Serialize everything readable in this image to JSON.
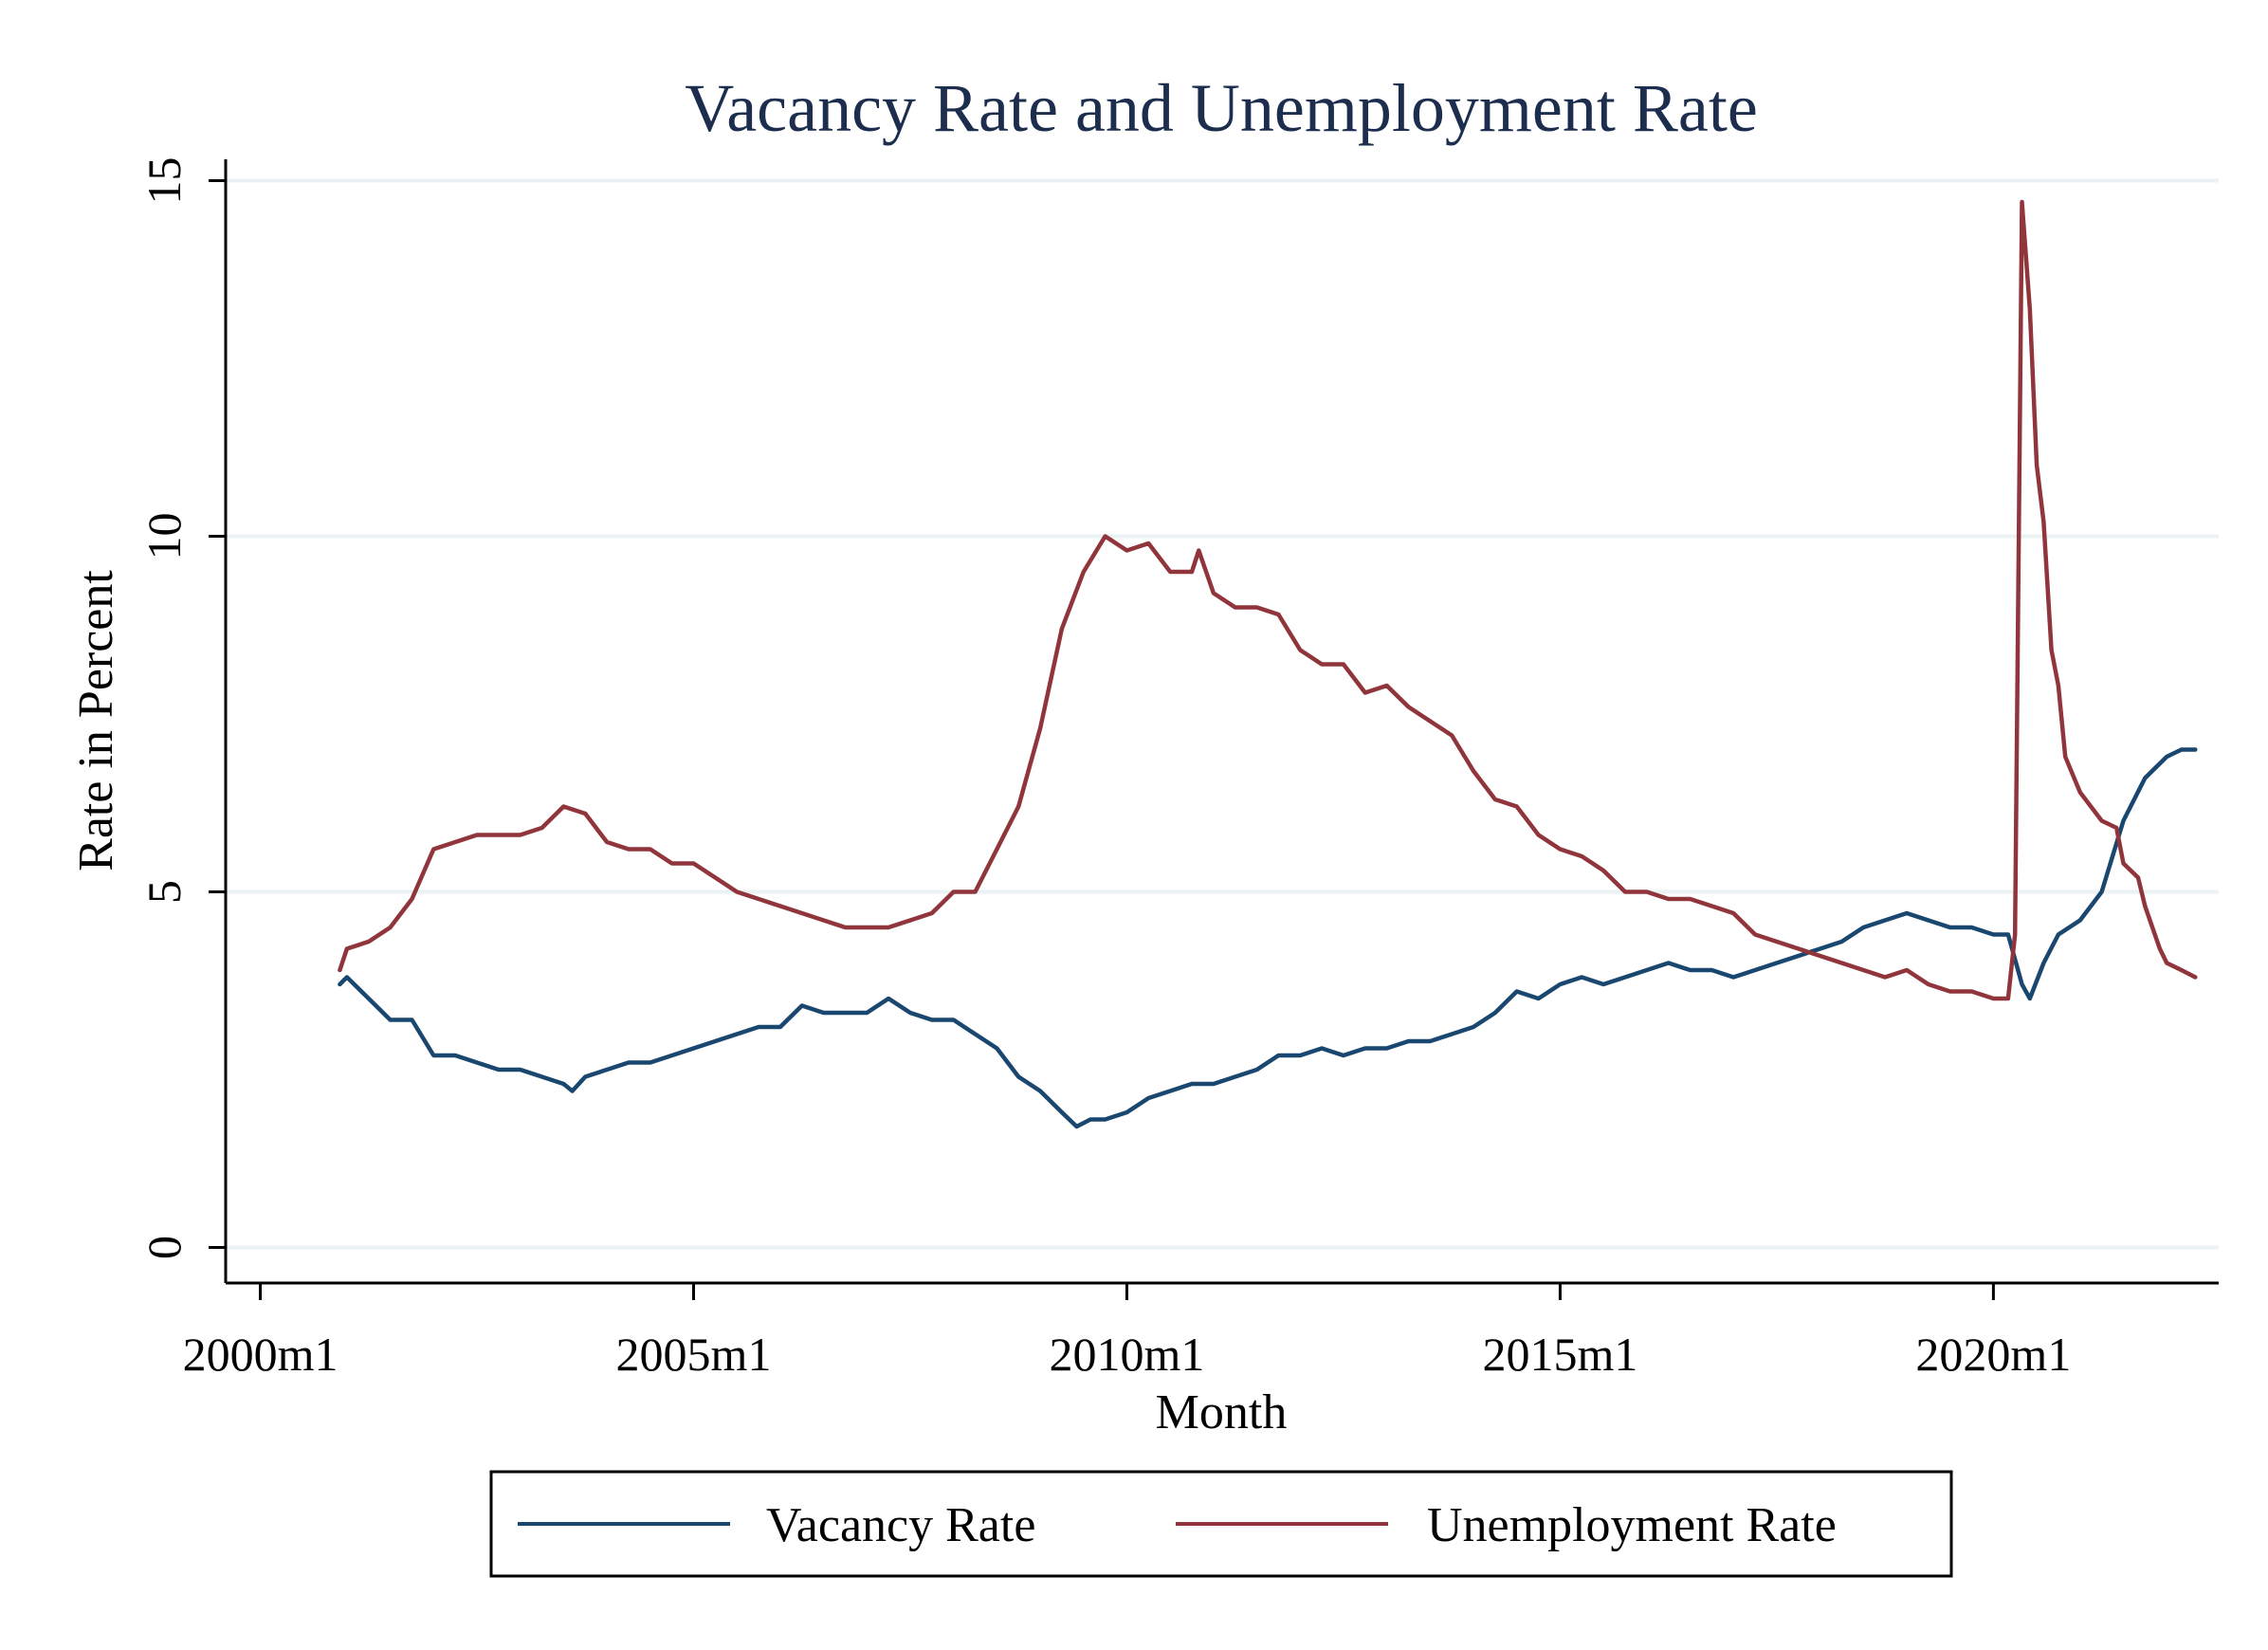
{
  "chart_data": {
    "type": "line",
    "title": "Vacancy Rate and Unemployment Rate",
    "xlabel": "Month",
    "ylabel": "Rate in Percent",
    "x_ticks": [
      {
        "value": 2000,
        "label": "2000m1"
      },
      {
        "value": 2005,
        "label": "2005m1"
      },
      {
        "value": 2010,
        "label": "2010m1"
      },
      {
        "value": 2015,
        "label": "2015m1"
      },
      {
        "value": 2020,
        "label": "2020m1"
      }
    ],
    "y_ticks": [
      {
        "value": 0,
        "label": "0"
      },
      {
        "value": 5,
        "label": "5"
      },
      {
        "value": 10,
        "label": "10"
      },
      {
        "value": 15,
        "label": "15"
      }
    ],
    "xlim": [
      1999.6,
      2022.6
    ],
    "ylim": [
      -0.5,
      15.3
    ],
    "grid": true,
    "legend_position": "bottom",
    "colors": {
      "title": "#1c2d4d",
      "vacancy": "#1a476f",
      "unemployment": "#90353b",
      "grid": "#eaf2f3"
    },
    "series": [
      {
        "name": "Vacancy Rate",
        "color": "#1a476f",
        "points": [
          [
            2000.917,
            3.7
          ],
          [
            2001.0,
            3.8
          ],
          [
            2001.25,
            3.5
          ],
          [
            2001.5,
            3.2
          ],
          [
            2001.75,
            3.2
          ],
          [
            2002.0,
            2.7
          ],
          [
            2002.25,
            2.7
          ],
          [
            2002.5,
            2.6
          ],
          [
            2002.75,
            2.5
          ],
          [
            2003.0,
            2.5
          ],
          [
            2003.25,
            2.4
          ],
          [
            2003.5,
            2.3
          ],
          [
            2003.6,
            2.2
          ],
          [
            2003.75,
            2.4
          ],
          [
            2004.0,
            2.5
          ],
          [
            2004.25,
            2.6
          ],
          [
            2004.5,
            2.6
          ],
          [
            2004.75,
            2.7
          ],
          [
            2005.0,
            2.8
          ],
          [
            2005.25,
            2.9
          ],
          [
            2005.5,
            3.0
          ],
          [
            2005.75,
            3.1
          ],
          [
            2006.0,
            3.1
          ],
          [
            2006.25,
            3.4
          ],
          [
            2006.5,
            3.3
          ],
          [
            2006.75,
            3.3
          ],
          [
            2007.0,
            3.3
          ],
          [
            2007.25,
            3.5
          ],
          [
            2007.5,
            3.3
          ],
          [
            2007.75,
            3.2
          ],
          [
            2008.0,
            3.2
          ],
          [
            2008.25,
            3.0
          ],
          [
            2008.5,
            2.8
          ],
          [
            2008.75,
            2.4
          ],
          [
            2009.0,
            2.2
          ],
          [
            2009.25,
            1.9
          ],
          [
            2009.42,
            1.7
          ],
          [
            2009.58,
            1.8
          ],
          [
            2009.75,
            1.8
          ],
          [
            2010.0,
            1.9
          ],
          [
            2010.25,
            2.1
          ],
          [
            2010.5,
            2.2
          ],
          [
            2010.75,
            2.3
          ],
          [
            2011.0,
            2.3
          ],
          [
            2011.25,
            2.4
          ],
          [
            2011.5,
            2.5
          ],
          [
            2011.75,
            2.7
          ],
          [
            2012.0,
            2.7
          ],
          [
            2012.25,
            2.8
          ],
          [
            2012.5,
            2.7
          ],
          [
            2012.75,
            2.8
          ],
          [
            2013.0,
            2.8
          ],
          [
            2013.25,
            2.9
          ],
          [
            2013.5,
            2.9
          ],
          [
            2013.75,
            3.0
          ],
          [
            2014.0,
            3.1
          ],
          [
            2014.25,
            3.3
          ],
          [
            2014.5,
            3.6
          ],
          [
            2014.75,
            3.5
          ],
          [
            2015.0,
            3.7
          ],
          [
            2015.25,
            3.8
          ],
          [
            2015.5,
            3.7
          ],
          [
            2015.75,
            3.8
          ],
          [
            2016.0,
            3.9
          ],
          [
            2016.25,
            4.0
          ],
          [
            2016.5,
            3.9
          ],
          [
            2016.75,
            3.9
          ],
          [
            2017.0,
            3.8
          ],
          [
            2017.25,
            3.9
          ],
          [
            2017.5,
            4.0
          ],
          [
            2017.75,
            4.1
          ],
          [
            2018.0,
            4.2
          ],
          [
            2018.25,
            4.3
          ],
          [
            2018.5,
            4.5
          ],
          [
            2018.75,
            4.6
          ],
          [
            2019.0,
            4.7
          ],
          [
            2019.25,
            4.6
          ],
          [
            2019.5,
            4.5
          ],
          [
            2019.75,
            4.5
          ],
          [
            2020.0,
            4.4
          ],
          [
            2020.17,
            4.4
          ],
          [
            2020.33,
            3.7
          ],
          [
            2020.42,
            3.5
          ],
          [
            2020.58,
            4.0
          ],
          [
            2020.75,
            4.4
          ],
          [
            2021.0,
            4.6
          ],
          [
            2021.25,
            5.0
          ],
          [
            2021.5,
            6.0
          ],
          [
            2021.75,
            6.6
          ],
          [
            2022.0,
            6.9
          ],
          [
            2022.17,
            7.0
          ],
          [
            2022.33,
            7.0
          ]
        ]
      },
      {
        "name": "Unemployment Rate",
        "color": "#90353b",
        "points": [
          [
            2000.917,
            3.9
          ],
          [
            2001.0,
            4.2
          ],
          [
            2001.25,
            4.3
          ],
          [
            2001.5,
            4.5
          ],
          [
            2001.75,
            4.9
          ],
          [
            2002.0,
            5.6
          ],
          [
            2002.25,
            5.7
          ],
          [
            2002.5,
            5.8
          ],
          [
            2002.75,
            5.8
          ],
          [
            2003.0,
            5.8
          ],
          [
            2003.25,
            5.9
          ],
          [
            2003.5,
            6.2
          ],
          [
            2003.75,
            6.1
          ],
          [
            2004.0,
            5.7
          ],
          [
            2004.25,
            5.6
          ],
          [
            2004.5,
            5.6
          ],
          [
            2004.75,
            5.4
          ],
          [
            2005.0,
            5.4
          ],
          [
            2005.25,
            5.2
          ],
          [
            2005.5,
            5.0
          ],
          [
            2005.75,
            4.9
          ],
          [
            2006.0,
            4.8
          ],
          [
            2006.25,
            4.7
          ],
          [
            2006.5,
            4.6
          ],
          [
            2006.75,
            4.5
          ],
          [
            2007.0,
            4.5
          ],
          [
            2007.25,
            4.5
          ],
          [
            2007.5,
            4.6
          ],
          [
            2007.75,
            4.7
          ],
          [
            2008.0,
            5.0
          ],
          [
            2008.25,
            5.0
          ],
          [
            2008.5,
            5.6
          ],
          [
            2008.75,
            6.2
          ],
          [
            2009.0,
            7.3
          ],
          [
            2009.25,
            8.7
          ],
          [
            2009.5,
            9.5
          ],
          [
            2009.75,
            10.0
          ],
          [
            2010.0,
            9.8
          ],
          [
            2010.25,
            9.9
          ],
          [
            2010.5,
            9.5
          ],
          [
            2010.75,
            9.5
          ],
          [
            2010.83,
            9.8
          ],
          [
            2011.0,
            9.2
          ],
          [
            2011.25,
            9.0
          ],
          [
            2011.5,
            9.0
          ],
          [
            2011.75,
            8.9
          ],
          [
            2012.0,
            8.4
          ],
          [
            2012.25,
            8.2
          ],
          [
            2012.5,
            8.2
          ],
          [
            2012.75,
            7.8
          ],
          [
            2013.0,
            7.9
          ],
          [
            2013.25,
            7.6
          ],
          [
            2013.5,
            7.4
          ],
          [
            2013.75,
            7.2
          ],
          [
            2014.0,
            6.7
          ],
          [
            2014.25,
            6.3
          ],
          [
            2014.5,
            6.2
          ],
          [
            2014.75,
            5.8
          ],
          [
            2015.0,
            5.6
          ],
          [
            2015.25,
            5.5
          ],
          [
            2015.5,
            5.3
          ],
          [
            2015.75,
            5.0
          ],
          [
            2016.0,
            5.0
          ],
          [
            2016.25,
            4.9
          ],
          [
            2016.5,
            4.9
          ],
          [
            2016.75,
            4.8
          ],
          [
            2017.0,
            4.7
          ],
          [
            2017.25,
            4.4
          ],
          [
            2017.5,
            4.3
          ],
          [
            2017.75,
            4.2
          ],
          [
            2018.0,
            4.1
          ],
          [
            2018.25,
            4.0
          ],
          [
            2018.5,
            3.9
          ],
          [
            2018.75,
            3.8
          ],
          [
            2019.0,
            3.9
          ],
          [
            2019.25,
            3.7
          ],
          [
            2019.5,
            3.6
          ],
          [
            2019.75,
            3.6
          ],
          [
            2020.0,
            3.5
          ],
          [
            2020.17,
            3.5
          ],
          [
            2020.25,
            4.4
          ],
          [
            2020.33,
            14.7
          ],
          [
            2020.42,
            13.2
          ],
          [
            2020.5,
            11.0
          ],
          [
            2020.58,
            10.2
          ],
          [
            2020.67,
            8.4
          ],
          [
            2020.75,
            7.9
          ],
          [
            2020.83,
            6.9
          ],
          [
            2021.0,
            6.4
          ],
          [
            2021.25,
            6.0
          ],
          [
            2021.42,
            5.9
          ],
          [
            2021.5,
            5.4
          ],
          [
            2021.67,
            5.2
          ],
          [
            2021.75,
            4.8
          ],
          [
            2021.92,
            4.2
          ],
          [
            2022.0,
            4.0
          ],
          [
            2022.17,
            3.9
          ],
          [
            2022.33,
            3.8
          ]
        ]
      }
    ]
  }
}
